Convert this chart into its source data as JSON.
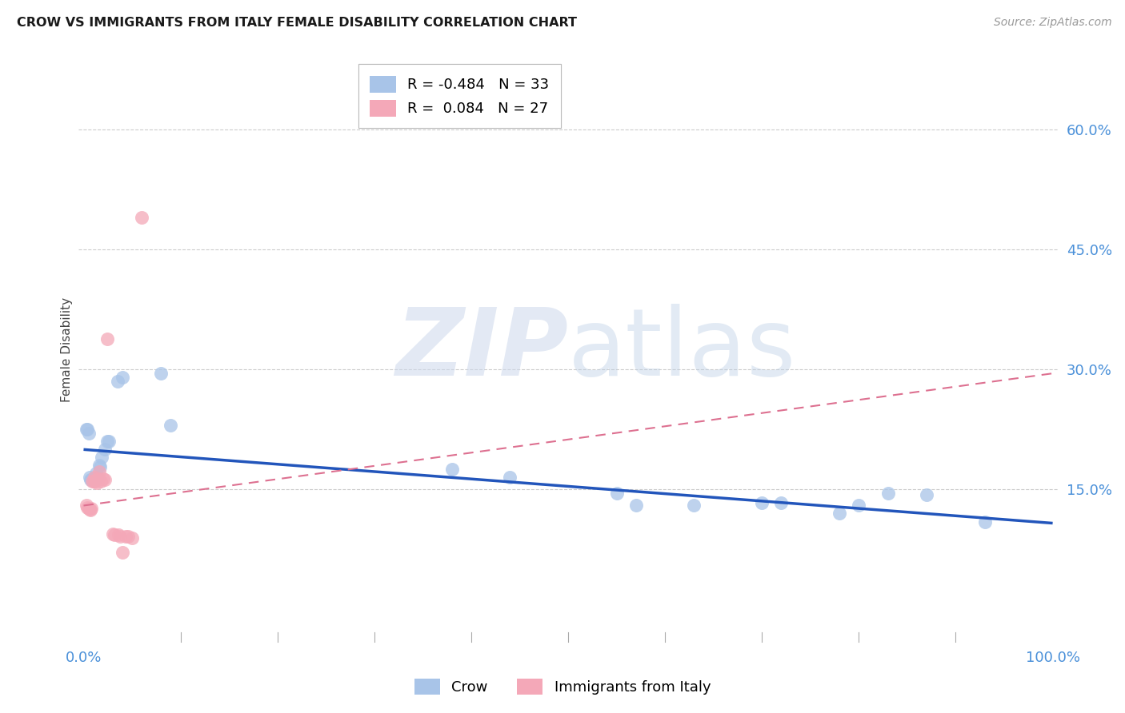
{
  "title": "CROW VS IMMIGRANTS FROM ITALY FEMALE DISABILITY CORRELATION CHART",
  "source": "Source: ZipAtlas.com",
  "ylabel": "Female Disability",
  "background_color": "#ffffff",
  "crow_color": "#a8c4e8",
  "italy_color": "#f4a8b8",
  "crow_line_color": "#2255bb",
  "italy_line_color": "#dd7090",
  "crow_R": -0.484,
  "crow_N": 33,
  "italy_R": 0.084,
  "italy_N": 27,
  "crow_x": [
    0.003,
    0.004,
    0.005,
    0.006,
    0.007,
    0.008,
    0.01,
    0.011,
    0.012,
    0.013,
    0.014,
    0.016,
    0.017,
    0.019,
    0.022,
    0.024,
    0.026,
    0.035,
    0.04,
    0.08,
    0.09,
    0.38,
    0.44,
    0.55,
    0.57,
    0.63,
    0.7,
    0.72,
    0.78,
    0.8,
    0.83,
    0.87,
    0.93
  ],
  "crow_y": [
    0.225,
    0.225,
    0.22,
    0.165,
    0.162,
    0.162,
    0.163,
    0.163,
    0.163,
    0.17,
    0.165,
    0.18,
    0.178,
    0.19,
    0.2,
    0.21,
    0.21,
    0.285,
    0.29,
    0.295,
    0.23,
    0.175,
    0.165,
    0.145,
    0.13,
    0.13,
    0.133,
    0.133,
    0.12,
    0.13,
    0.145,
    0.143,
    0.11
  ],
  "italy_x": [
    0.003,
    0.004,
    0.005,
    0.006,
    0.007,
    0.008,
    0.009,
    0.01,
    0.011,
    0.012,
    0.013,
    0.014,
    0.015,
    0.016,
    0.018,
    0.02,
    0.022,
    0.024,
    0.03,
    0.032,
    0.036,
    0.038,
    0.04,
    0.043,
    0.046,
    0.05,
    0.06
  ],
  "italy_y": [
    0.13,
    0.127,
    0.126,
    0.125,
    0.124,
    0.126,
    0.16,
    0.16,
    0.165,
    0.16,
    0.162,
    0.158,
    0.163,
    0.172,
    0.16,
    0.163,
    0.162,
    0.338,
    0.095,
    0.094,
    0.094,
    0.092,
    0.072,
    0.092,
    0.092,
    0.09,
    0.49
  ],
  "crow_trend_x": [
    0.0,
    1.0
  ],
  "crow_trend_y": [
    0.2,
    0.108
  ],
  "italy_trend_x": [
    0.0,
    1.0
  ],
  "italy_trend_y": [
    0.13,
    0.295
  ],
  "y_tick_vals": [
    0.15,
    0.3,
    0.45,
    0.6
  ],
  "y_tick_labels": [
    "15.0%",
    "30.0%",
    "45.0%",
    "60.0%"
  ],
  "xlim": [
    -0.005,
    1.005
  ],
  "ylim": [
    -0.04,
    0.69
  ]
}
